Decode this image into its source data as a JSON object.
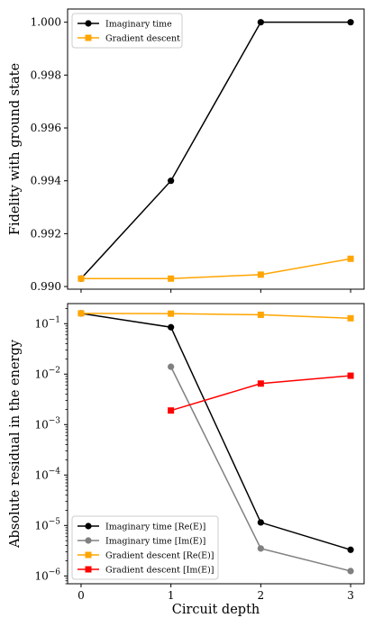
{
  "chart_data": [
    {
      "type": "line",
      "title": "",
      "xlabel": "",
      "ylabel": "Fidelity with ground state",
      "x": [
        0,
        1,
        2,
        3
      ],
      "xticks": [
        "0",
        "1",
        "2",
        "3"
      ],
      "xlim": [
        -0.15,
        3.15
      ],
      "ylim": [
        0.9899,
        1.0005
      ],
      "yticks": [
        "0.990",
        "0.992",
        "0.994",
        "0.996",
        "0.998",
        "1.000"
      ],
      "ytick_values": [
        0.99,
        0.992,
        0.994,
        0.996,
        0.998,
        1.0
      ],
      "yscale": "linear",
      "legend_position": "upper left",
      "series": [
        {
          "name": "Imaginary time",
          "color": "#000000",
          "marker": "circle",
          "x": [
            0,
            1,
            2,
            3
          ],
          "values": [
            0.9903,
            0.994,
            1.0,
            1.0
          ]
        },
        {
          "name": "Gradient descent",
          "color": "#ffa500",
          "marker": "square",
          "x": [
            0,
            1,
            2,
            3
          ],
          "values": [
            0.9903,
            0.9903,
            0.99045,
            0.99105
          ]
        }
      ]
    },
    {
      "type": "line",
      "title": "",
      "xlabel": "Circuit depth",
      "ylabel": "Absolute residual in the energy",
      "x": [
        0,
        1,
        2,
        3
      ],
      "xticks": [
        "0",
        "1",
        "2",
        "3"
      ],
      "xlim": [
        -0.15,
        3.15
      ],
      "ylim": [
        7e-07,
        0.25
      ],
      "yscale": "log",
      "ytick_exponents": [
        -1,
        -2,
        -3,
        -4,
        -5,
        -6
      ],
      "ytick_base": "10",
      "legend_position": "lower left",
      "series": [
        {
          "name": "Imaginary time [Re(E)]",
          "color": "#000000",
          "marker": "circle",
          "x": [
            0,
            1,
            2,
            3
          ],
          "values": [
            0.16,
            0.085,
            1.15e-05,
            3.3e-06
          ]
        },
        {
          "name": "Imaginary time [Im(E)]",
          "color": "#808080",
          "marker": "circle",
          "x": [
            1,
            2,
            3
          ],
          "values": [
            0.014,
            3.5e-06,
            1.25e-06
          ]
        },
        {
          "name": "Gradient descent [Re(E)]",
          "color": "#ffa500",
          "marker": "square",
          "x": [
            0,
            1,
            2,
            3
          ],
          "values": [
            0.16,
            0.158,
            0.15,
            0.128
          ]
        },
        {
          "name": "Gradient descent [Im(E)]",
          "color": "#ff0000",
          "marker": "square",
          "x": [
            1,
            2,
            3
          ],
          "values": [
            0.0019,
            0.0065,
            0.0093
          ]
        }
      ]
    }
  ]
}
